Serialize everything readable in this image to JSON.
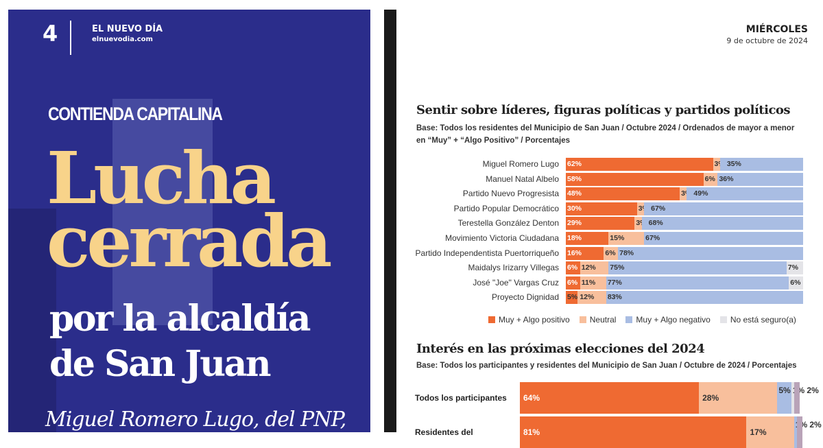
{
  "cover": {
    "page_number": "4",
    "brand": "EL NUEVO DÍA",
    "site": "elnuevodia.com",
    "kicker": "CONTIENDA CAPITALINA",
    "headline_1": "Lucha",
    "headline_2": "cerrada",
    "headline_3": "por la alcaldía",
    "headline_4": "de San Juan",
    "subhead": "Miguel Romero Lugo, del PNP,"
  },
  "header": {
    "day": "MIÉRCOLES",
    "date": "9 de octubre de 2024"
  },
  "chart_data": [
    {
      "type": "bar",
      "orientation": "horizontal",
      "stacked": true,
      "title": "Sentir sobre líderes, figuras políticas y partidos políticos",
      "subtitle": "Base: Todos los residentes del Municipio de San Juan / Octubre 2024 / Ordenados de mayor a menor en “Muy” + “Algo Positivo” / Porcentajes",
      "categories": [
        "Miguel Romero Lugo",
        "Manuel Natal Albelo",
        "Partido Nuevo Progresista",
        "Partido Popular Democrático",
        "Terestella González Denton",
        "Movimiento Victoria Ciudadana",
        "Partido Independentista Puertorriqueño",
        "Maidalys Irizarry Villegas",
        "José \"Joe\" Vargas Cruz",
        "Proyecto Dignidad"
      ],
      "series": [
        {
          "name": "Muy + Algo positivo",
          "color": "#ef6a32",
          "values": [
            62,
            58,
            48,
            30,
            29,
            18,
            16,
            6,
            6,
            5
          ]
        },
        {
          "name": "Neutral",
          "color": "#f8bf9c",
          "values": [
            3,
            6,
            3,
            3,
            3,
            15,
            6,
            12,
            11,
            12
          ]
        },
        {
          "name": "Muy + Algo negativo",
          "color": "#a9bde3",
          "values": [
            35,
            36,
            49,
            67,
            68,
            67,
            78,
            75,
            77,
            83
          ]
        },
        {
          "name": "No está seguro(a)",
          "color": "#e4e4e8",
          "values": [
            0,
            0,
            0,
            0,
            0,
            0,
            0,
            7,
            6,
            0
          ]
        }
      ],
      "legend": "bottom"
    },
    {
      "type": "bar",
      "orientation": "horizontal",
      "stacked": true,
      "title": "Interés en las próximas elecciones del 2024",
      "subtitle": "Base: Todos los participantes y residentes del Municipio de San Juan / Octubre de 2024 / Porcentajes",
      "categories": [
        "Todos los participantes",
        "Residentes del"
      ],
      "series": [
        {
          "color": "#ef6a32",
          "values": [
            64,
            81
          ]
        },
        {
          "color": "#f8bf9c",
          "values": [
            28,
            17
          ]
        },
        {
          "color": "#a9bde3",
          "values": [
            5,
            1
          ]
        },
        {
          "color": "#e4e4e8",
          "values": [
            1,
            0
          ]
        },
        {
          "color": "#b9a3b8",
          "values": [
            2,
            2
          ]
        }
      ]
    }
  ]
}
